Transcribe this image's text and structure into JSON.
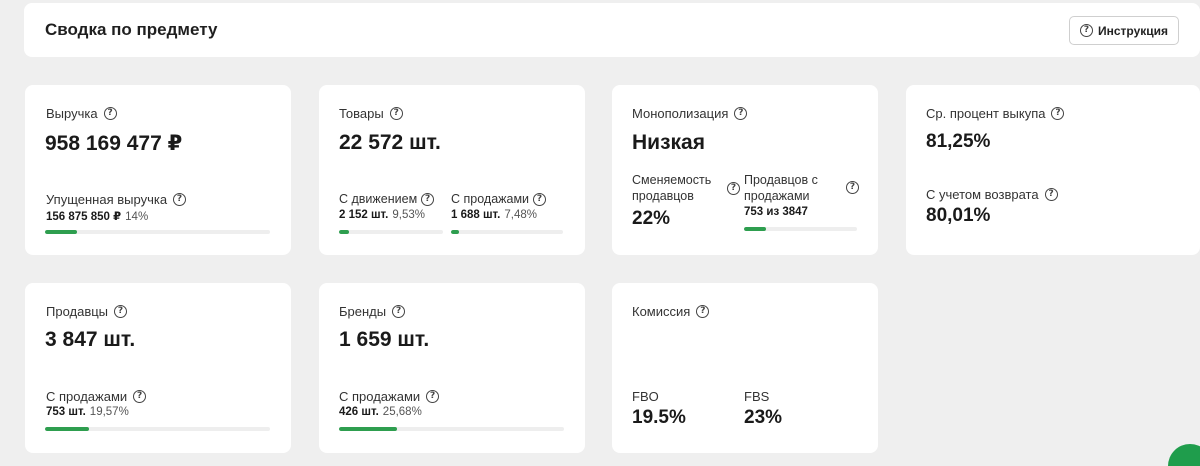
{
  "header": {
    "title": "Сводка по предмету",
    "instruction_label": "Инструкция"
  },
  "revenue": {
    "label": "Выручка",
    "value": "958 169 477 ₽",
    "lost_label": "Упущенная выручка",
    "lost_value": "156 875 850 ₽",
    "lost_pct": "14%",
    "lost_fraction": 0.14
  },
  "products": {
    "label": "Товары",
    "value": "22 572 шт.",
    "moving_label": "С движением",
    "moving_value": "2 152 шт.",
    "moving_pct": "9,53%",
    "moving_fraction": 0.0953,
    "sales_label": "С продажами",
    "sales_value": "1 688 шт.",
    "sales_pct": "7,48%",
    "sales_fraction": 0.0748
  },
  "monopoly": {
    "label": "Монополизация",
    "value": "Низкая",
    "turnover_label": "Сменяемость продавцов",
    "turnover_value": "22%",
    "sellers_label": "Продавцов с продажами",
    "sellers_value": "753 из 3847",
    "sellers_fraction": 0.1957
  },
  "buyout": {
    "label": "Ср. процент выкупа",
    "value": "81,25%",
    "return_label": "С учетом возврата",
    "return_value": "80,01%"
  },
  "sellers": {
    "label": "Продавцы",
    "value": "3 847 шт.",
    "sales_label": "С продажами",
    "sales_value": "753 шт.",
    "sales_pct": "19,57%",
    "sales_fraction": 0.1957
  },
  "brands": {
    "label": "Бренды",
    "value": "1 659 шт.",
    "sales_label": "С продажами",
    "sales_value": "426 шт.",
    "sales_pct": "25,68%",
    "sales_fraction": 0.2568
  },
  "commission": {
    "label": "Комиссия",
    "fbo_label": "FBO",
    "fbo_value": "19.5%",
    "fbs_label": "FBS",
    "fbs_value": "23%"
  },
  "colors": {
    "accent": "#2e9e4f",
    "track": "#eeeeee",
    "background": "#efefef"
  }
}
